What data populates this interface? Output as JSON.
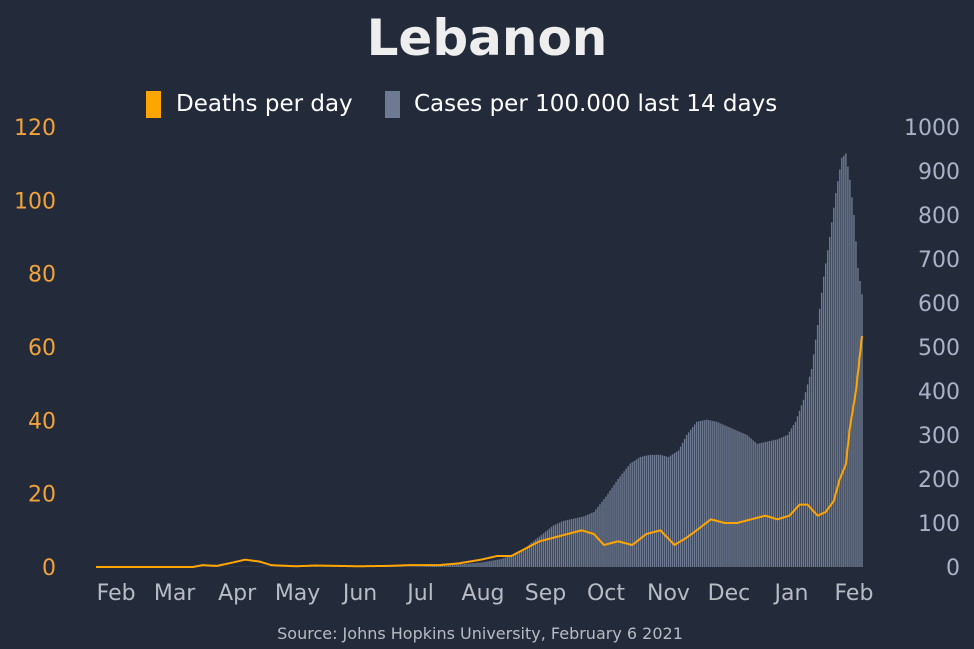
{
  "chart_data": {
    "type": "bar",
    "title": "Lebanon",
    "source": "Source: Johns Hopkins University, February 6 2021",
    "legend": {
      "placement": "top-center",
      "deaths_label": "Deaths per day",
      "cases_label": "Cases per 100.000 last 14 days"
    },
    "colors": {
      "background": "#232b3b",
      "deaths": "#ffa500",
      "cases": "#6e7a91",
      "left_axis_text": "#f2a23a",
      "right_axis_text": "#aab2c8",
      "month_text": "#b7bbc4",
      "title_text": "#eeeeee",
      "source_text": "#b7bbc4"
    },
    "x_axis": {
      "start": "2020-01-22",
      "end": "2021-02-05",
      "months": [
        {
          "label": "Feb",
          "date": "2020-02-01"
        },
        {
          "label": "Mar",
          "date": "2020-03-01"
        },
        {
          "label": "Apr",
          "date": "2020-04-01"
        },
        {
          "label": "May",
          "date": "2020-05-01"
        },
        {
          "label": "Jun",
          "date": "2020-06-01"
        },
        {
          "label": "Jul",
          "date": "2020-07-01"
        },
        {
          "label": "Aug",
          "date": "2020-08-01"
        },
        {
          "label": "Sep",
          "date": "2020-09-01"
        },
        {
          "label": "Oct",
          "date": "2020-10-01"
        },
        {
          "label": "Nov",
          "date": "2020-11-01"
        },
        {
          "label": "Dec",
          "date": "2020-12-01"
        },
        {
          "label": "Jan",
          "date": "2021-01-01"
        },
        {
          "label": "Feb",
          "date": "2021-02-01"
        }
      ]
    },
    "y_left": {
      "min": 0,
      "max": 120,
      "ticks": [
        "0",
        "20",
        "40",
        "60",
        "80",
        "100",
        "120"
      ]
    },
    "y_right": {
      "min": 0,
      "max": 1000,
      "ticks": [
        "0",
        "100",
        "200",
        "300",
        "400",
        "500",
        "600",
        "700",
        "800",
        "900",
        "1000"
      ]
    },
    "grid": false,
    "series": [
      {
        "name": "Deaths per day",
        "type": "line",
        "axis": "left",
        "points": [
          [
            "2020-01-22",
            0
          ],
          [
            "2020-03-10",
            0
          ],
          [
            "2020-03-15",
            0.5
          ],
          [
            "2020-03-22",
            0.3
          ],
          [
            "2020-03-28",
            1
          ],
          [
            "2020-04-05",
            2
          ],
          [
            "2020-04-12",
            1.5
          ],
          [
            "2020-04-18",
            0.5
          ],
          [
            "2020-04-30",
            0.2
          ],
          [
            "2020-05-10",
            0.4
          ],
          [
            "2020-05-31",
            0.2
          ],
          [
            "2020-06-15",
            0.3
          ],
          [
            "2020-06-25",
            0.5
          ],
          [
            "2020-07-10",
            0.5
          ],
          [
            "2020-07-20",
            1
          ],
          [
            "2020-07-31",
            2
          ],
          [
            "2020-08-08",
            3
          ],
          [
            "2020-08-15",
            3
          ],
          [
            "2020-08-22",
            5
          ],
          [
            "2020-08-29",
            7
          ],
          [
            "2020-09-05",
            8
          ],
          [
            "2020-09-12",
            9
          ],
          [
            "2020-09-19",
            10
          ],
          [
            "2020-09-25",
            9
          ],
          [
            "2020-09-30",
            6
          ],
          [
            "2020-10-07",
            7
          ],
          [
            "2020-10-14",
            6
          ],
          [
            "2020-10-21",
            9
          ],
          [
            "2020-10-28",
            10
          ],
          [
            "2020-11-04",
            6
          ],
          [
            "2020-11-10",
            8
          ],
          [
            "2020-11-15",
            10
          ],
          [
            "2020-11-22",
            13
          ],
          [
            "2020-11-29",
            12
          ],
          [
            "2020-12-05",
            12
          ],
          [
            "2020-12-12",
            13
          ],
          [
            "2020-12-19",
            14
          ],
          [
            "2020-12-25",
            13
          ],
          [
            "2020-12-31",
            14
          ],
          [
            "2021-01-05",
            17
          ],
          [
            "2021-01-09",
            17
          ],
          [
            "2021-01-14",
            14
          ],
          [
            "2021-01-18",
            15
          ],
          [
            "2021-01-22",
            18
          ],
          [
            "2021-01-25",
            24
          ],
          [
            "2021-01-28",
            28
          ],
          [
            "2021-01-30",
            38
          ],
          [
            "2021-02-02",
            48
          ],
          [
            "2021-02-05",
            63
          ]
        ]
      },
      {
        "name": "Cases per 100.000 last 14 days",
        "type": "bar",
        "axis": "right",
        "points": [
          [
            "2020-01-22",
            0
          ],
          [
            "2020-03-01",
            0
          ],
          [
            "2020-04-01",
            0.5
          ],
          [
            "2020-05-01",
            0.5
          ],
          [
            "2020-06-01",
            0.5
          ],
          [
            "2020-07-01",
            1
          ],
          [
            "2020-07-10",
            3
          ],
          [
            "2020-07-20",
            6
          ],
          [
            "2020-07-31",
            10
          ],
          [
            "2020-08-10",
            18
          ],
          [
            "2020-08-20",
            35
          ],
          [
            "2020-08-25",
            55
          ],
          [
            "2020-09-01",
            80
          ],
          [
            "2020-09-05",
            95
          ],
          [
            "2020-09-10",
            105
          ],
          [
            "2020-09-15",
            110
          ],
          [
            "2020-09-20",
            115
          ],
          [
            "2020-09-25",
            125
          ],
          [
            "2020-10-01",
            160
          ],
          [
            "2020-10-07",
            200
          ],
          [
            "2020-10-13",
            235
          ],
          [
            "2020-10-18",
            250
          ],
          [
            "2020-10-23",
            255
          ],
          [
            "2020-10-28",
            255
          ],
          [
            "2020-11-01",
            250
          ],
          [
            "2020-11-06",
            265
          ],
          [
            "2020-11-10",
            300
          ],
          [
            "2020-11-15",
            330
          ],
          [
            "2020-11-20",
            335
          ],
          [
            "2020-11-25",
            330
          ],
          [
            "2020-11-30",
            320
          ],
          [
            "2020-12-05",
            310
          ],
          [
            "2020-12-10",
            300
          ],
          [
            "2020-12-15",
            280
          ],
          [
            "2020-12-20",
            285
          ],
          [
            "2020-12-25",
            290
          ],
          [
            "2020-12-30",
            300
          ],
          [
            "2021-01-03",
            330
          ],
          [
            "2021-01-07",
            380
          ],
          [
            "2021-01-11",
            450
          ],
          [
            "2021-01-14",
            550
          ],
          [
            "2021-01-17",
            660
          ],
          [
            "2021-01-20",
            750
          ],
          [
            "2021-01-23",
            850
          ],
          [
            "2021-01-26",
            930
          ],
          [
            "2021-01-28",
            940
          ],
          [
            "2021-01-30",
            880
          ],
          [
            "2021-02-01",
            800
          ],
          [
            "2021-02-03",
            680
          ],
          [
            "2021-02-05",
            620
          ]
        ]
      }
    ]
  }
}
